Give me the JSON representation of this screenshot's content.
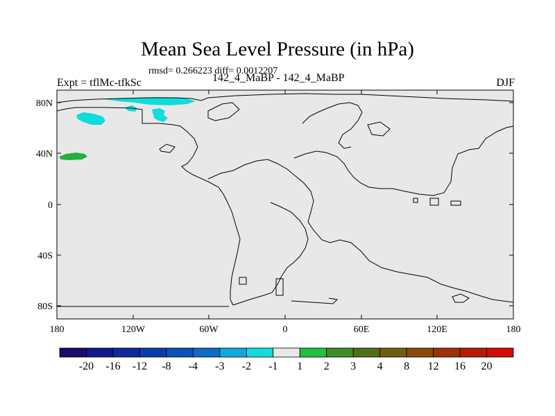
{
  "title": "Mean Sea Level Pressure (in hPa)",
  "stats_line": "rmsd= 0.266223 diff= 0.0012207",
  "experiment_label": "Expt = tflMc-tfkSc",
  "period_label": "142_4_MaBP - 142_4_MaBP",
  "season": "DJF",
  "axes": {
    "lat_labels": [
      "80N",
      "40N",
      "0",
      "40S",
      "80S"
    ],
    "lon_labels": [
      "180",
      "120W",
      "60W",
      "0",
      "60E",
      "120E",
      "180"
    ]
  },
  "colorbar": {
    "labels": [
      "-20",
      "-16",
      "-12",
      "-8",
      "-4",
      "-3",
      "-2",
      "-1",
      "1",
      "2",
      "3",
      "4",
      "8",
      "12",
      "16",
      "20"
    ],
    "colors": [
      "#1c0a6e",
      "#101a8c",
      "#0f28a0",
      "#0a3cac",
      "#0a52b8",
      "#0a6ac8",
      "#10a8dc",
      "#10dcdc",
      "#e8e8e8",
      "#20c040",
      "#3c8c28",
      "#506e18",
      "#6e5e10",
      "#8a4a08",
      "#a03008",
      "#b81a08",
      "#d40a0a"
    ]
  },
  "colors": {
    "ocean_fill": "#e8e8e8",
    "anomaly_negative": "#10dcdc",
    "anomaly_positive": "#20b040"
  }
}
